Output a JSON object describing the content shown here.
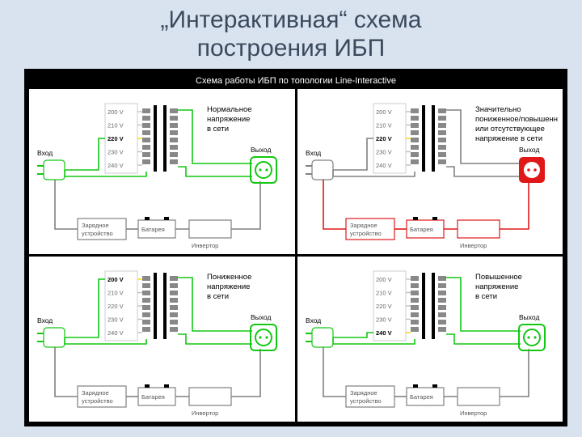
{
  "title_line1": "„Интерактивная“ схема",
  "title_line2": "построения ИБП",
  "banner_text": "Схема работы ИБП по топологии Line-Interactive",
  "labels": {
    "input": "Вход",
    "output": "Выход",
    "charger": "Зарядное",
    "charger2": "устройство",
    "battery": "Батарея",
    "inverter": "Инвертор"
  },
  "voltages": [
    "200 V",
    "210 V",
    "220 V",
    "230 V",
    "240 V"
  ],
  "panels": [
    {
      "desc": [
        "Нормальное",
        "напряжение",
        "в сети"
      ],
      "main_color": "#14c714",
      "tap_hi_color": "#ffd400",
      "alt_path_color": "#808080",
      "output_style": "green",
      "tap_index": 2
    },
    {
      "desc": [
        "Значительно",
        "пониженное/повышенное",
        "или отсутствующее",
        "напряжение в сети"
      ],
      "main_color": "#808080",
      "tap_hi_color": "#ffd400",
      "alt_path_color": "#e01818",
      "output_style": "red",
      "tap_index": 2
    },
    {
      "desc": [
        "Пониженное",
        "напряжение",
        "в сети"
      ],
      "main_color": "#14c714",
      "tap_hi_color": "#ffd400",
      "alt_path_color": "#808080",
      "output_style": "green",
      "tap_index": 0
    },
    {
      "desc": [
        "Повышенное",
        "напряжение",
        "в сети"
      ],
      "main_color": "#14c714",
      "tap_hi_color": "#ffd400",
      "alt_path_color": "#808080",
      "output_style": "green",
      "tap_index": 4
    }
  ],
  "colors": {
    "bg": "#d9e2ef",
    "title": "#3a4a5c",
    "frame": "#000000"
  }
}
